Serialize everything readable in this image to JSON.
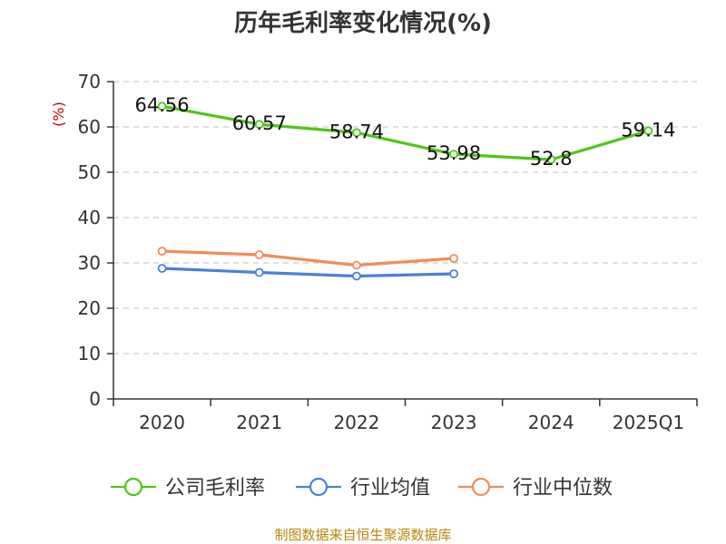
{
  "chart_data": {
    "type": "line",
    "title": "历年毛利率变化情况(%)",
    "ylabel": "(%)",
    "categories": [
      "2020",
      "2021",
      "2022",
      "2023",
      "2024",
      "2025Q1"
    ],
    "ylim": [
      0,
      70
    ],
    "yticks": [
      "0",
      "10",
      "20",
      "30",
      "40",
      "50",
      "60",
      "70"
    ],
    "grid": true,
    "legend_position": "bottom",
    "series": [
      {
        "name": "公司毛利率",
        "color": "#52c41a",
        "values": [
          64.56,
          60.57,
          58.74,
          53.98,
          52.8,
          59.14
        ],
        "labels": [
          "64.56",
          "60.57",
          "58.74",
          "53.98",
          "52.8",
          "59.14"
        ]
      },
      {
        "name": "行业均值",
        "color": "#4a7fdc",
        "values": [
          28.8,
          27.9,
          27.1,
          27.6,
          null,
          null
        ]
      },
      {
        "name": "行业中位数",
        "color": "#f08c5a",
        "values": [
          32.6,
          31.8,
          29.5,
          31.0,
          null,
          null
        ]
      }
    ]
  },
  "footer": {
    "source": "制图数据来自恒生聚源数据库"
  }
}
